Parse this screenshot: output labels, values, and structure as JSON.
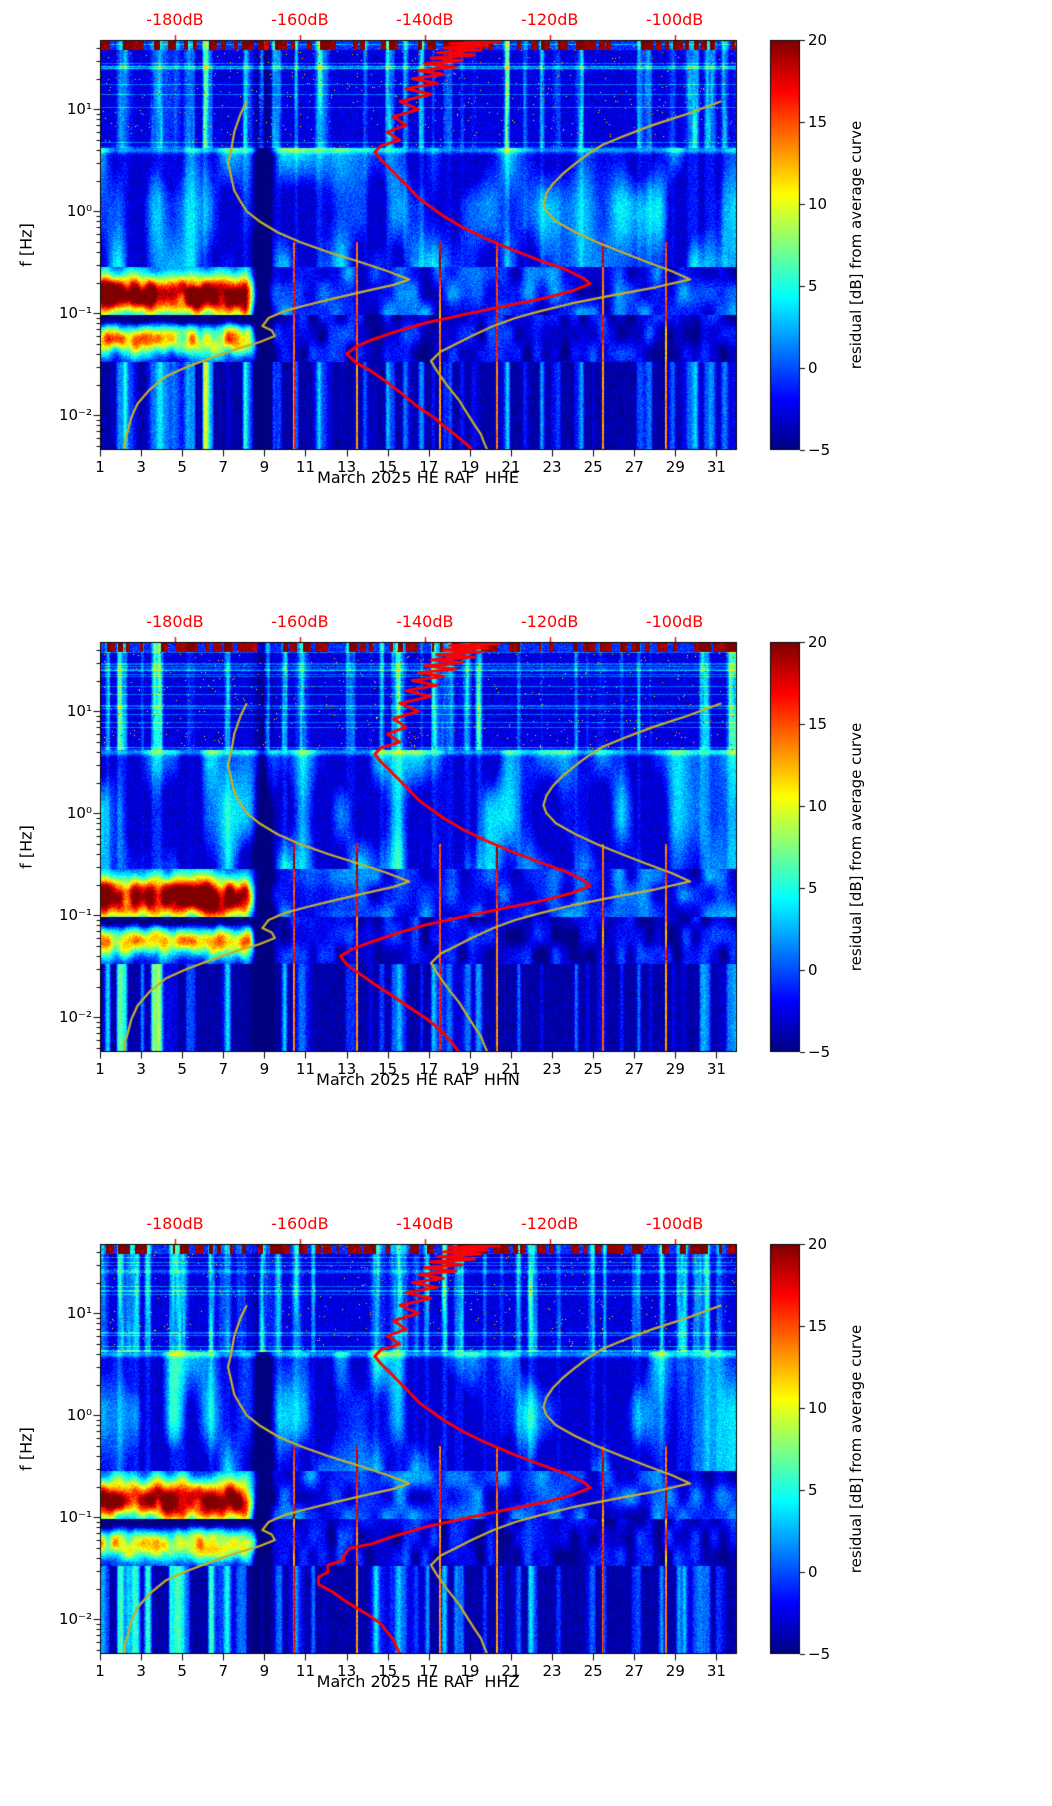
{
  "figure": {
    "background": "#ffffff",
    "kind": "seismic PPSD residual spectrograms, 3 channels"
  },
  "colors": {
    "red_curve": "#ff0000",
    "olive_curve": "#c4b02c",
    "top_axis_label": "#ff0000",
    "axis": "#000000"
  },
  "axes": {
    "ylabel": "f [Hz]",
    "x_tick_days": [
      1,
      3,
      5,
      7,
      9,
      11,
      13,
      15,
      17,
      19,
      21,
      23,
      25,
      27,
      29,
      31
    ],
    "x_tick_labels": [
      "1",
      "3",
      "5",
      "7",
      "9",
      "11",
      "13",
      "15",
      "17",
      "19",
      "21",
      "23",
      "25",
      "27",
      "29",
      "31"
    ],
    "y_tick_values": [
      10,
      1,
      0.1,
      0.01
    ],
    "y_tick_labels": [
      "10¹",
      "10⁰",
      "10⁻¹",
      "10⁻²"
    ],
    "f_range_hz": [
      0.0046,
      48
    ],
    "day_range": [
      1,
      32
    ],
    "top_axis": {
      "labels": [
        "-180dB",
        "-160dB",
        "-140dB",
        "-120dB",
        "-100dB"
      ],
      "values": [
        -180,
        -160,
        -140,
        -120,
        -100
      ],
      "db_range": [
        -192,
        -90
      ]
    }
  },
  "colorbar": {
    "label": "residual [dB] from average curve",
    "tick_values": [
      20,
      15,
      10,
      5,
      0,
      -5
    ],
    "tick_labels": [
      "20",
      "15",
      "10",
      "5",
      "0",
      "−5"
    ],
    "vmin": -5,
    "vmax": 20,
    "colormap": "jet"
  },
  "chart_data": [
    {
      "type": "heatmap",
      "title": "March 2025 HE RAF  HHE",
      "channel": "HHE",
      "noise_seed": 3,
      "spike_days": [
        10.45,
        13.52,
        17.55,
        20.32,
        25.5,
        28.55
      ],
      "features": {
        "strong_microseism_blob": "days 1-8, 0.08-0.22 Hz, residual +15 to +20 dB",
        "secondary_band": "days 1-8, 0.04-0.08 Hz, residual +8 to +14 dB",
        "diurnal_stripes": "vertical daily noise stripes at 4-50 Hz and below 0.03 Hz",
        "quiet_gap": "low-residual column near day 9"
      },
      "red_curve": [
        [
          48,
          -133
        ],
        [
          46,
          -128
        ],
        [
          44,
          -136
        ],
        [
          42,
          -130
        ],
        [
          40,
          -137
        ],
        [
          38,
          -131
        ],
        [
          36,
          -138
        ],
        [
          34,
          -132
        ],
        [
          32,
          -139
        ],
        [
          30,
          -134
        ],
        [
          28,
          -140
        ],
        [
          26,
          -135
        ],
        [
          24,
          -141
        ],
        [
          22,
          -137
        ],
        [
          20,
          -142
        ],
        [
          18,
          -138
        ],
        [
          16,
          -143
        ],
        [
          14,
          -139
        ],
        [
          12,
          -144
        ],
        [
          10,
          -141
        ],
        [
          8.5,
          -145
        ],
        [
          7,
          -143
        ],
        [
          6,
          -146
        ],
        [
          5,
          -144
        ],
        [
          4.4,
          -147
        ],
        [
          3.8,
          -148
        ],
        [
          3.2,
          -147
        ],
        [
          2.6,
          -145.5
        ],
        [
          2.1,
          -144
        ],
        [
          1.7,
          -142.5
        ],
        [
          1.35,
          -141
        ],
        [
          1.1,
          -139
        ],
        [
          0.9,
          -137
        ],
        [
          0.7,
          -134
        ],
        [
          0.55,
          -130.5
        ],
        [
          0.42,
          -126
        ],
        [
          0.33,
          -121.5
        ],
        [
          0.27,
          -117.5
        ],
        [
          0.22,
          -114.5
        ],
        [
          0.195,
          -113.5
        ],
        [
          0.165,
          -116.5
        ],
        [
          0.14,
          -121
        ],
        [
          0.115,
          -128
        ],
        [
          0.095,
          -134.5
        ],
        [
          0.08,
          -140
        ],
        [
          0.065,
          -145
        ],
        [
          0.055,
          -148.5
        ],
        [
          0.047,
          -151
        ],
        [
          0.04,
          -152.5
        ],
        [
          0.033,
          -151
        ],
        [
          0.027,
          -148.5
        ],
        [
          0.021,
          -146
        ],
        [
          0.016,
          -143.5
        ],
        [
          0.012,
          -141
        ],
        [
          0.0095,
          -138.5
        ],
        [
          0.0075,
          -136.5
        ],
        [
          0.006,
          -134.5
        ],
        [
          0.005,
          -133
        ],
        [
          0.0046,
          -132.5
        ]
      ]
    },
    {
      "type": "heatmap",
      "title": "March 2025 HE RAF  HHN",
      "channel": "HHN",
      "noise_seed": 7,
      "spike_days": [
        10.45,
        13.52,
        17.55,
        20.32,
        25.5,
        28.55
      ],
      "features": {
        "strong_microseism_blob": "days 1-8, 0.08-0.22 Hz, residual +15 to +20 dB",
        "secondary_band": "days 1-8, 0.04-0.08 Hz, residual +8 to +14 dB",
        "diurnal_stripes": "vertical daily noise stripes at 4-50 Hz and below 0.03 Hz",
        "quiet_gap": "low-residual column near day 9"
      },
      "red_curve": [
        [
          48,
          -133
        ],
        [
          46,
          -128
        ],
        [
          44,
          -136
        ],
        [
          42,
          -130
        ],
        [
          40,
          -137
        ],
        [
          38,
          -131
        ],
        [
          36,
          -138
        ],
        [
          34,
          -132
        ],
        [
          32,
          -139
        ],
        [
          30,
          -134
        ],
        [
          28,
          -140
        ],
        [
          26,
          -135
        ],
        [
          24,
          -141
        ],
        [
          22,
          -137
        ],
        [
          20,
          -142
        ],
        [
          18,
          -138
        ],
        [
          16,
          -143
        ],
        [
          14,
          -139
        ],
        [
          12,
          -144
        ],
        [
          10,
          -141
        ],
        [
          8.5,
          -145
        ],
        [
          7,
          -143
        ],
        [
          6,
          -146
        ],
        [
          5,
          -144
        ],
        [
          4.4,
          -147
        ],
        [
          3.8,
          -148
        ],
        [
          3.2,
          -147
        ],
        [
          2.6,
          -145.5
        ],
        [
          2.1,
          -144
        ],
        [
          1.7,
          -142.5
        ],
        [
          1.35,
          -141
        ],
        [
          1.1,
          -139
        ],
        [
          0.9,
          -137
        ],
        [
          0.7,
          -134
        ],
        [
          0.55,
          -130.5
        ],
        [
          0.42,
          -126
        ],
        [
          0.33,
          -121.5
        ],
        [
          0.27,
          -117.5
        ],
        [
          0.22,
          -114.5
        ],
        [
          0.195,
          -113.5
        ],
        [
          0.165,
          -116.5
        ],
        [
          0.14,
          -121
        ],
        [
          0.115,
          -128
        ],
        [
          0.095,
          -134.5
        ],
        [
          0.08,
          -140
        ],
        [
          0.065,
          -145
        ],
        [
          0.055,
          -148.5
        ],
        [
          0.047,
          -151.5
        ],
        [
          0.04,
          -153.5
        ],
        [
          0.033,
          -152.5
        ],
        [
          0.027,
          -150.5
        ],
        [
          0.021,
          -148
        ],
        [
          0.016,
          -145
        ],
        [
          0.012,
          -142
        ],
        [
          0.0095,
          -139.5
        ],
        [
          0.0075,
          -137.5
        ],
        [
          0.006,
          -136
        ],
        [
          0.005,
          -135
        ],
        [
          0.0046,
          -134.5
        ]
      ]
    },
    {
      "type": "heatmap",
      "title": "March 2025 HE RAF  HHZ",
      "channel": "HHZ",
      "noise_seed": 13,
      "spike_days": [
        10.45,
        13.52,
        17.55,
        20.32,
        25.5,
        28.55
      ],
      "features": {
        "strong_microseism_blob": "days 1-8, 0.08-0.22 Hz, residual +15 to +20 dB",
        "secondary_band": "days 1-8, 0.04-0.08 Hz, residual +8 to +14 dB",
        "diurnal_stripes": "vertical daily noise stripes at 4-50 Hz and below 0.03 Hz",
        "quiet_gap": "low-residual column near day 9"
      },
      "red_curve": [
        [
          48,
          -133
        ],
        [
          46,
          -128
        ],
        [
          44,
          -136
        ],
        [
          42,
          -130
        ],
        [
          40,
          -137
        ],
        [
          38,
          -131
        ],
        [
          36,
          -138
        ],
        [
          34,
          -132
        ],
        [
          32,
          -139
        ],
        [
          30,
          -134
        ],
        [
          28,
          -140
        ],
        [
          26,
          -135
        ],
        [
          24,
          -141
        ],
        [
          22,
          -137
        ],
        [
          20,
          -142
        ],
        [
          18,
          -138
        ],
        [
          16,
          -143
        ],
        [
          14,
          -139
        ],
        [
          12,
          -144
        ],
        [
          10,
          -141
        ],
        [
          8.5,
          -145
        ],
        [
          7,
          -143
        ],
        [
          6,
          -146
        ],
        [
          5,
          -144
        ],
        [
          4.4,
          -147
        ],
        [
          3.8,
          -148
        ],
        [
          3.2,
          -147
        ],
        [
          2.6,
          -145.5
        ],
        [
          2.1,
          -144
        ],
        [
          1.7,
          -142.5
        ],
        [
          1.35,
          -141
        ],
        [
          1.1,
          -139
        ],
        [
          0.9,
          -137
        ],
        [
          0.7,
          -134
        ],
        [
          0.55,
          -130.5
        ],
        [
          0.42,
          -126
        ],
        [
          0.33,
          -121.5
        ],
        [
          0.27,
          -117.5
        ],
        [
          0.22,
          -114.5
        ],
        [
          0.195,
          -113.5
        ],
        [
          0.165,
          -116.5
        ],
        [
          0.14,
          -121
        ],
        [
          0.115,
          -128
        ],
        [
          0.095,
          -134.5
        ],
        [
          0.08,
          -140
        ],
        [
          0.065,
          -145
        ],
        [
          0.055,
          -148.5
        ],
        [
          0.05,
          -152
        ],
        [
          0.042,
          -153
        ],
        [
          0.038,
          -153
        ],
        [
          0.034,
          -155.5
        ],
        [
          0.029,
          -155.5
        ],
        [
          0.026,
          -157
        ],
        [
          0.022,
          -157
        ],
        [
          0.019,
          -155
        ],
        [
          0.0155,
          -153
        ],
        [
          0.0125,
          -150.5
        ],
        [
          0.0105,
          -148.5
        ],
        [
          0.009,
          -147
        ],
        [
          0.0075,
          -146
        ],
        [
          0.0063,
          -145
        ],
        [
          0.0053,
          -144.5
        ],
        [
          0.0046,
          -144
        ]
      ]
    }
  ],
  "reference_curves": {
    "olive_low": [
      [
        12,
        -168.5
      ],
      [
        9,
        -169.5
      ],
      [
        6,
        -170.5
      ],
      [
        4,
        -171
      ],
      [
        3,
        -171.5
      ],
      [
        2.2,
        -171
      ],
      [
        1.6,
        -170.5
      ],
      [
        1.25,
        -169.5
      ],
      [
        1,
        -168.5
      ],
      [
        0.8,
        -166.5
      ],
      [
        0.62,
        -163.5
      ],
      [
        0.5,
        -160
      ],
      [
        0.4,
        -155.5
      ],
      [
        0.32,
        -150.5
      ],
      [
        0.26,
        -146
      ],
      [
        0.215,
        -142.5
      ],
      [
        0.19,
        -145
      ],
      [
        0.165,
        -149.5
      ],
      [
        0.14,
        -154.5
      ],
      [
        0.12,
        -159
      ],
      [
        0.105,
        -162.5
      ],
      [
        0.09,
        -165
      ],
      [
        0.075,
        -166
      ],
      [
        0.068,
        -164.5
      ],
      [
        0.06,
        -164
      ],
      [
        0.052,
        -166.5
      ],
      [
        0.045,
        -170
      ],
      [
        0.037,
        -174
      ],
      [
        0.03,
        -178
      ],
      [
        0.024,
        -181.5
      ],
      [
        0.018,
        -184
      ],
      [
        0.013,
        -186
      ],
      [
        0.0095,
        -187
      ],
      [
        0.0072,
        -187.5
      ],
      [
        0.0057,
        -188
      ],
      [
        0.0046,
        -188
      ]
    ],
    "olive_high": [
      [
        12,
        -92.5
      ],
      [
        9,
        -98
      ],
      [
        7,
        -103.5
      ],
      [
        5.5,
        -108
      ],
      [
        4.5,
        -111.5
      ],
      [
        3.6,
        -114
      ],
      [
        2.9,
        -116
      ],
      [
        2.3,
        -118
      ],
      [
        1.85,
        -119.5
      ],
      [
        1.5,
        -120.5
      ],
      [
        1.2,
        -121
      ],
      [
        1,
        -120.5
      ],
      [
        0.8,
        -119
      ],
      [
        0.63,
        -116
      ],
      [
        0.5,
        -112.5
      ],
      [
        0.4,
        -108.5
      ],
      [
        0.32,
        -104.5
      ],
      [
        0.26,
        -100.5
      ],
      [
        0.215,
        -97.5
      ],
      [
        0.18,
        -103
      ],
      [
        0.15,
        -110
      ],
      [
        0.125,
        -116.5
      ],
      [
        0.105,
        -121.5
      ],
      [
        0.09,
        -125.5
      ],
      [
        0.075,
        -129
      ],
      [
        0.06,
        -132.5
      ],
      [
        0.05,
        -135
      ],
      [
        0.042,
        -137.5
      ],
      [
        0.034,
        -139
      ],
      [
        0.027,
        -138
      ],
      [
        0.02,
        -136.5
      ],
      [
        0.014,
        -134.5
      ],
      [
        0.01,
        -133
      ],
      [
        0.008,
        -132
      ],
      [
        0.0065,
        -131
      ],
      [
        0.0054,
        -130.5
      ],
      [
        0.0046,
        -130
      ]
    ]
  }
}
